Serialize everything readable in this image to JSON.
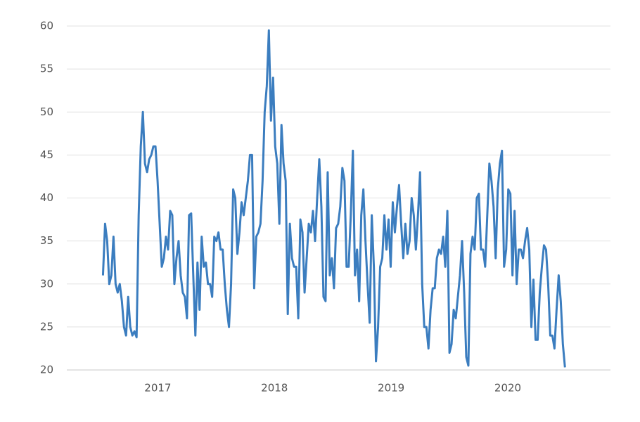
{
  "chart_data": {
    "type": "line",
    "color": "#3b7dbf",
    "grid": true,
    "xlim": [
      2016.22,
      2020.88
    ],
    "xticks": [
      2017,
      2018,
      2019,
      2020
    ],
    "ylim": [
      20,
      60
    ],
    "yticks": [
      20,
      25,
      30,
      35,
      40,
      45,
      50,
      55,
      60
    ],
    "x": [
      2016.53,
      2016.548,
      2016.566,
      2016.584,
      2016.602,
      2016.62,
      2016.638,
      2016.656,
      2016.674,
      2016.692,
      2016.71,
      2016.728,
      2016.746,
      2016.764,
      2016.782,
      2016.8,
      2016.818,
      2016.836,
      2016.854,
      2016.872,
      2016.89,
      2016.908,
      2016.926,
      2016.944,
      2016.962,
      2016.98,
      2016.998,
      2017.016,
      2017.034,
      2017.052,
      2017.07,
      2017.088,
      2017.106,
      2017.124,
      2017.142,
      2017.16,
      2017.178,
      2017.196,
      2017.214,
      2017.232,
      2017.25,
      2017.268,
      2017.286,
      2017.304,
      2017.322,
      2017.34,
      2017.358,
      2017.376,
      2017.394,
      2017.412,
      2017.43,
      2017.448,
      2017.466,
      2017.484,
      2017.502,
      2017.52,
      2017.538,
      2017.556,
      2017.574,
      2017.592,
      2017.61,
      2017.628,
      2017.646,
      2017.664,
      2017.682,
      2017.7,
      2017.718,
      2017.736,
      2017.754,
      2017.772,
      2017.79,
      2017.808,
      2017.826,
      2017.844,
      2017.862,
      2017.88,
      2017.898,
      2017.916,
      2017.934,
      2017.952,
      2017.97,
      2017.988,
      2018.006,
      2018.024,
      2018.042,
      2018.06,
      2018.078,
      2018.096,
      2018.114,
      2018.132,
      2018.15,
      2018.168,
      2018.186,
      2018.204,
      2018.222,
      2018.24,
      2018.258,
      2018.276,
      2018.294,
      2018.312,
      2018.33,
      2018.348,
      2018.366,
      2018.384,
      2018.402,
      2018.42,
      2018.438,
      2018.456,
      2018.474,
      2018.492,
      2018.51,
      2018.528,
      2018.546,
      2018.564,
      2018.582,
      2018.6,
      2018.618,
      2018.636,
      2018.654,
      2018.672,
      2018.69,
      2018.708,
      2018.726,
      2018.744,
      2018.762,
      2018.78,
      2018.798,
      2018.816,
      2018.834,
      2018.852,
      2018.87,
      2018.888,
      2018.906,
      2018.924,
      2018.942,
      2018.96,
      2018.978,
      2018.996,
      2019.014,
      2019.032,
      2019.05,
      2019.068,
      2019.086,
      2019.104,
      2019.122,
      2019.14,
      2019.158,
      2019.176,
      2019.194,
      2019.212,
      2019.23,
      2019.248,
      2019.266,
      2019.284,
      2019.302,
      2019.32,
      2019.338,
      2019.356,
      2019.374,
      2019.392,
      2019.41,
      2019.428,
      2019.446,
      2019.464,
      2019.482,
      2019.5,
      2019.518,
      2019.536,
      2019.554,
      2019.572,
      2019.59,
      2019.608,
      2019.626,
      2019.644,
      2019.662,
      2019.68,
      2019.698,
      2019.716,
      2019.734,
      2019.752,
      2019.77,
      2019.788,
      2019.806,
      2019.824,
      2019.842,
      2019.86,
      2019.878,
      2019.896,
      2019.914,
      2019.932,
      2019.95,
      2019.968,
      2019.986,
      2020.004,
      2020.022,
      2020.04,
      2020.058,
      2020.076,
      2020.094,
      2020.112,
      2020.13,
      2020.148,
      2020.166,
      2020.184,
      2020.202,
      2020.22,
      2020.238,
      2020.256,
      2020.274,
      2020.292,
      2020.31,
      2020.328,
      2020.346,
      2020.364,
      2020.382,
      2020.4,
      2020.418,
      2020.436,
      2020.454,
      2020.472,
      2020.49
    ],
    "values": [
      31,
      37,
      35,
      30,
      31,
      35.5,
      30,
      29,
      30,
      28,
      25,
      24,
      28.5,
      25,
      24,
      24.5,
      23.8,
      38,
      46,
      50,
      44,
      43,
      44.5,
      45,
      46,
      46,
      42,
      37,
      32,
      33,
      35.5,
      34,
      38.5,
      38,
      30,
      33,
      35,
      31,
      29,
      28.5,
      26,
      38,
      38.2,
      31,
      24,
      32.5,
      27,
      35.5,
      32,
      32.5,
      30,
      30,
      28.5,
      35.5,
      35,
      36,
      34,
      34,
      30,
      27,
      25,
      30,
      41,
      40,
      33.5,
      36,
      39.5,
      38,
      40,
      42,
      45,
      45,
      29.5,
      35.5,
      36,
      37,
      42,
      50,
      53,
      59.5,
      49,
      54,
      46,
      44,
      37,
      48.5,
      44,
      42,
      26.5,
      37,
      33,
      32,
      32,
      26,
      37.5,
      36,
      29,
      33,
      37,
      36,
      38.5,
      35,
      40,
      44.5,
      39,
      28.5,
      28,
      43,
      31,
      33,
      29.5,
      36.5,
      37,
      39,
      43.5,
      42,
      32,
      32,
      38,
      45.5,
      31,
      34,
      28,
      38,
      41,
      35,
      30,
      25.5,
      38,
      32,
      21,
      25,
      32,
      33,
      38,
      34,
      37.5,
      32,
      39.5,
      36,
      39,
      41.5,
      37,
      33,
      37,
      33.5,
      35,
      40,
      38,
      34,
      38,
      43,
      30,
      25,
      25,
      22.5,
      27,
      29.5,
      29.5,
      33,
      34,
      33.5,
      35.5,
      32,
      38.5,
      22,
      23,
      27,
      26,
      28.5,
      31,
      35,
      29,
      21.5,
      20.5,
      33.5,
      35.5,
      34,
      40,
      40.5,
      34,
      34,
      32,
      38,
      44,
      42,
      39,
      33,
      41,
      44,
      45.5,
      32,
      34,
      41,
      40.5,
      31,
      38.5,
      30,
      34,
      34,
      33,
      35,
      36.5,
      34,
      25,
      30.5,
      23.5,
      23.5,
      29,
      32,
      34.5,
      34,
      30,
      24,
      24,
      22.5,
      27,
      31,
      28,
      23,
      20.3
    ]
  }
}
